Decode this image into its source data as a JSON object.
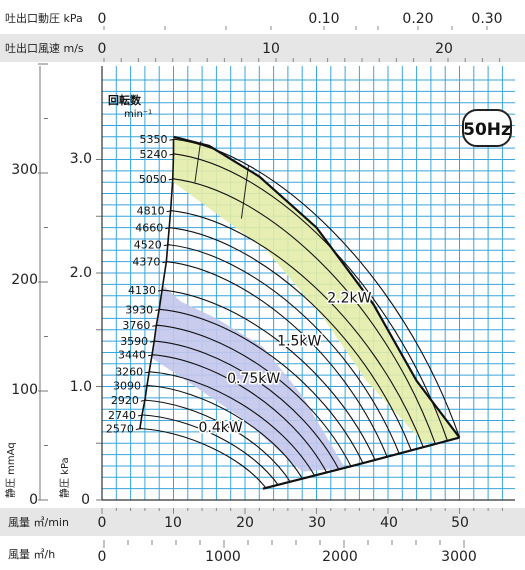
{
  "badge": "50Hz",
  "top_axes": [
    {
      "label": "吐出口動圧 kPa",
      "ticks": [
        "0",
        "0.10",
        "0.20",
        "0.30"
      ]
    },
    {
      "label": "吐出口風速 m/s",
      "ticks": [
        "0",
        "10",
        "20"
      ]
    }
  ],
  "left_axes": {
    "mmAq_label": "静圧 mmAq",
    "mmAq_ticks": [
      "0",
      "100",
      "200",
      "300"
    ],
    "kPa_label": "静圧 kPa",
    "kPa_ticks": [
      "0",
      "1.0",
      "2.0",
      "3.0"
    ]
  },
  "bottom_axes": [
    {
      "label": "風量 ㎥/min",
      "ticks": [
        "0",
        "10",
        "20",
        "30",
        "40",
        "50"
      ]
    },
    {
      "label": "風量 ㎥/h",
      "ticks": [
        "0",
        "1000",
        "2000",
        "3000"
      ]
    }
  ],
  "rpm_header": {
    "line1": "回転数",
    "line2": "min⁻¹"
  },
  "chart_data": {
    "type": "line",
    "xlabel": "風量 ㎥/min",
    "ylabel": "静圧 kPa",
    "xlim": [
      0,
      55
    ],
    "ylim": [
      0,
      3.45
    ],
    "grid": true,
    "speed_curves": [
      {
        "rpm": "5350",
        "start": [
          10.0,
          3.18
        ]
      },
      {
        "rpm": "5240",
        "start": [
          10.0,
          3.05
        ]
      },
      {
        "rpm": "5050",
        "start": [
          9.9,
          2.83
        ]
      },
      {
        "rpm": "4810",
        "start": [
          9.6,
          2.55
        ]
      },
      {
        "rpm": "4660",
        "start": [
          9.4,
          2.4
        ]
      },
      {
        "rpm": "4520",
        "start": [
          9.2,
          2.25
        ]
      },
      {
        "rpm": "4370",
        "start": [
          9.0,
          2.1
        ]
      },
      {
        "rpm": "4130",
        "start": [
          8.4,
          1.85
        ]
      },
      {
        "rpm": "3930",
        "start": [
          8.0,
          1.68
        ]
      },
      {
        "rpm": "3760",
        "start": [
          7.6,
          1.54
        ]
      },
      {
        "rpm": "3590",
        "start": [
          7.3,
          1.4
        ]
      },
      {
        "rpm": "3440",
        "start": [
          7.0,
          1.28
        ]
      },
      {
        "rpm": "3260",
        "start": [
          6.6,
          1.13
        ]
      },
      {
        "rpm": "3090",
        "start": [
          6.3,
          1.01
        ]
      },
      {
        "rpm": "2920",
        "start": [
          6.0,
          0.88
        ]
      },
      {
        "rpm": "2740",
        "start": [
          5.6,
          0.75
        ]
      },
      {
        "rpm": "2570",
        "start": [
          5.3,
          0.63
        ]
      }
    ],
    "envelope": {
      "top": [
        [
          10,
          3.2
        ],
        [
          15,
          3.12
        ],
        [
          22,
          2.85
        ],
        [
          30,
          2.4
        ],
        [
          38,
          1.72
        ],
        [
          44,
          1.05
        ],
        [
          50,
          0.55
        ]
      ],
      "bottom": [
        [
          22.5,
          0.1
        ],
        [
          35,
          0.3
        ],
        [
          50,
          0.55
        ]
      ]
    },
    "power_zones": [
      {
        "label": "2.2kW",
        "color": "#e3eca8",
        "polygon": [
          [
            10,
            3.2
          ],
          [
            15,
            3.12
          ],
          [
            22,
            2.85
          ],
          [
            30,
            2.4
          ],
          [
            38,
            1.72
          ],
          [
            44,
            1.05
          ],
          [
            50,
            0.55
          ],
          [
            45,
            0.5
          ],
          [
            37,
            1.05
          ],
          [
            31,
            1.6
          ],
          [
            23,
            2.2
          ],
          [
            10,
            2.8
          ]
        ]
      },
      {
        "label": "1.5kW",
        "color": "",
        "polygon": []
      },
      {
        "label": "0.75kW",
        "color": "#c4c7ec",
        "polygon": [
          [
            8.4,
            1.9
          ],
          [
            11.0,
            1.75
          ],
          [
            16,
            1.6
          ],
          [
            22.5,
            1.35
          ],
          [
            28,
            0.92
          ],
          [
            34,
            0.28
          ],
          [
            28,
            0.25
          ],
          [
            20,
            0.7
          ],
          [
            13,
            1.0
          ],
          [
            7,
            1.25
          ]
        ]
      },
      {
        "label": "0.4kW",
        "color": "",
        "polygon": []
      }
    ],
    "zone_labels": [
      {
        "label": "2.2kW",
        "at": [
          31.5,
          1.74
        ]
      },
      {
        "label": "1.5kW",
        "at": [
          24.5,
          1.36
        ]
      },
      {
        "label": "0.75kW",
        "at": [
          17.5,
          1.03
        ]
      },
      {
        "label": "0.4kW",
        "at": [
          13.5,
          0.6
        ]
      }
    ]
  }
}
